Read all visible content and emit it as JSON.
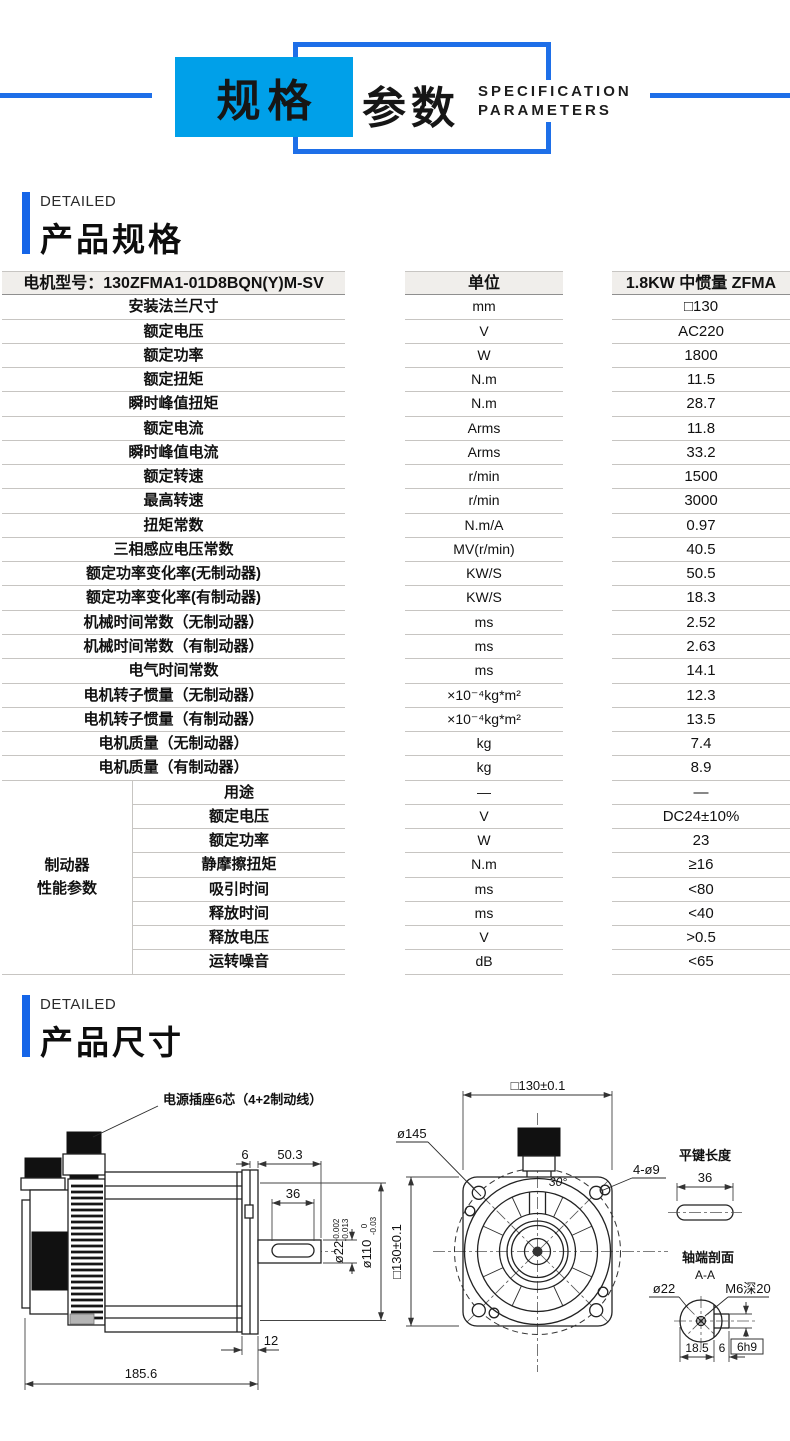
{
  "colors": {
    "accent_fill": "#00a0e9",
    "accent_line": "#1e6fe8",
    "section_bar": "#1565e8"
  },
  "banner": {
    "badge_primary": "规格",
    "badge_secondary": "参数",
    "subtitle": [
      "SPECIFICATION",
      "PARAMETERS"
    ]
  },
  "section_spec": {
    "eyebrow": "DETAILED",
    "title": "产品规格"
  },
  "section_dims": {
    "eyebrow": "DETAILED",
    "title": "产品尺寸"
  },
  "spec_table": {
    "header": {
      "model": "电机型号：130ZFMA1-01D8BQN(Y)M-SV",
      "unit": "单位",
      "series": "1.8KW 中惯量 ZFMA"
    },
    "rows": [
      {
        "label": "安装法兰尺寸",
        "unit": "mm",
        "value": "□130"
      },
      {
        "label": "额定电压",
        "unit": "V",
        "value": "AC220"
      },
      {
        "label": "额定功率",
        "unit": "W",
        "value": "1800"
      },
      {
        "label": "额定扭矩",
        "unit": "N.m",
        "value": "11.5"
      },
      {
        "label": "瞬时峰值扭矩",
        "unit": "N.m",
        "value": "28.7"
      },
      {
        "label": "额定电流",
        "unit": "Arms",
        "value": "11.8"
      },
      {
        "label": "瞬时峰值电流",
        "unit": "Arms",
        "value": "33.2"
      },
      {
        "label": "额定转速",
        "unit": "r/min",
        "value": "1500"
      },
      {
        "label": "最高转速",
        "unit": "r/min",
        "value": "3000"
      },
      {
        "label": "扭矩常数",
        "unit": "N.m/A",
        "value": "0.97"
      },
      {
        "label": "三相感应电压常数",
        "unit": "MV(r/min)",
        "value": "40.5"
      },
      {
        "label": "额定功率变化率(无制动器)",
        "unit": "KW/S",
        "value": "50.5"
      },
      {
        "label": "额定功率变化率(有制动器)",
        "unit": "KW/S",
        "value": "18.3"
      },
      {
        "label": "机械时间常数（无制动器）",
        "unit": "ms",
        "value": "2.52"
      },
      {
        "label": "机械时间常数（有制动器）",
        "unit": "ms",
        "value": "2.63"
      },
      {
        "label": "电气时间常数",
        "unit": "ms",
        "value": "14.1"
      },
      {
        "label": "电机转子惯量（无制动器）",
        "unit": "×10⁻⁴kg*m²",
        "value": "12.3"
      },
      {
        "label": "电机转子惯量（有制动器）",
        "unit": "×10⁻⁴kg*m²",
        "value": "13.5"
      },
      {
        "label": "电机质量（无制动器）",
        "unit": "kg",
        "value": "7.4"
      },
      {
        "label": "电机质量（有制动器）",
        "unit": "kg",
        "value": "8.9"
      }
    ],
    "brake": {
      "group_label": [
        "制动器",
        "性能参数"
      ],
      "rows": [
        {
          "label": "用途",
          "unit": "—",
          "value": "—"
        },
        {
          "label": "额定电压",
          "unit": "V",
          "value": "DC24±10%"
        },
        {
          "label": "额定功率",
          "unit": "W",
          "value": "23"
        },
        {
          "label": "静摩擦扭矩",
          "unit": "N.m",
          "value": "≥16"
        },
        {
          "label": "吸引时间",
          "unit": "ms",
          "value": "<80"
        },
        {
          "label": "释放时间",
          "unit": "ms",
          "value": "<40"
        },
        {
          "label": "释放电压",
          "unit": "V",
          "value": ">0.5"
        },
        {
          "label": "运转噪音",
          "unit": "dB",
          "value": "<65"
        }
      ]
    }
  },
  "drawing": {
    "side": {
      "connector_label": "电源插座6芯（4+2制动线）",
      "dim_6": "6",
      "dim_50_3": "50.3",
      "dim_36": "36",
      "dia22": "ø22",
      "dia22_tol_hi": "-0.002",
      "dia22_tol_lo": "-0.013",
      "dia110": "ø110",
      "dia110_tol_hi": "0",
      "dia110_tol_lo": "-0.03",
      "dim_12": "12",
      "dim_185_6": "185.6"
    },
    "front": {
      "dim_top": "□130±0.1",
      "dim_left": "□130±0.1",
      "dia145": "ø145",
      "angle": "30°",
      "holes": "4-ø9"
    },
    "key": {
      "title": "平键长度",
      "dim_36": "36"
    },
    "section": {
      "title": "轴端剖面",
      "view": "A-A",
      "dia22": "ø22",
      "thread": "M6深20",
      "key_tol": "6h9",
      "dim_18_5": "18.5",
      "dim_6": "6"
    }
  }
}
